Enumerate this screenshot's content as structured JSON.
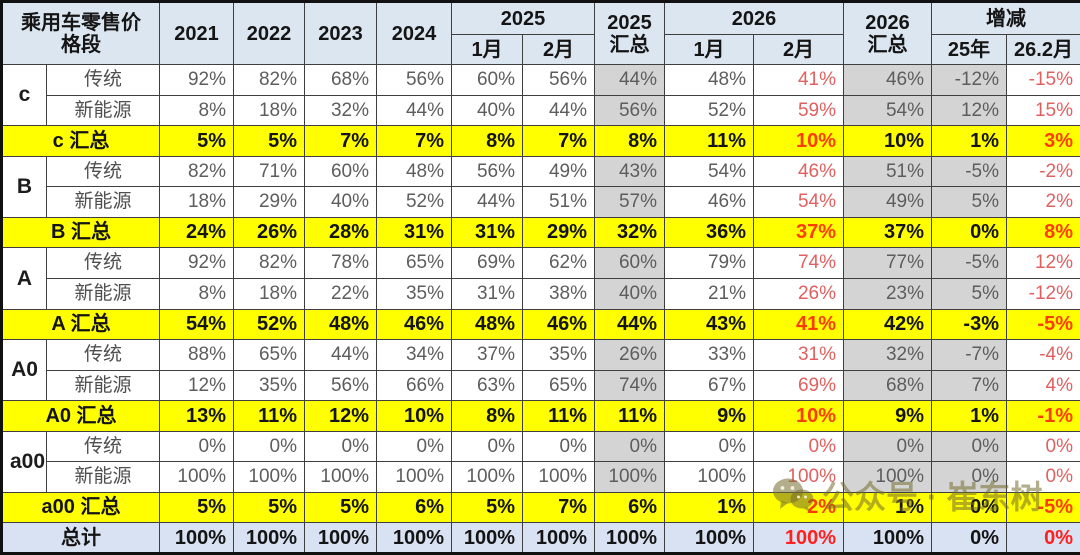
{
  "header": {
    "title": "乘用车零售价\n格段",
    "years": [
      "2021",
      "2022",
      "2023",
      "2024"
    ],
    "group_2025": "2025",
    "sum_2025": "2025\n汇总",
    "group_2026": "2026",
    "sum_2026": "2026\n汇总",
    "change_label": "增减",
    "months": [
      "1月",
      "2月"
    ],
    "change_subs": [
      "25年",
      "26.2月"
    ]
  },
  "watermark": {
    "icon": "wechat-icon",
    "text": "公众号 · 崔东树",
    "color": "#746c2e"
  },
  "style_colors": {
    "header_bg": "#dce6f1",
    "summary_bg": "#ffff00",
    "total_bg": "#d9e2f2",
    "gray_col_bg": "#d4d4d4",
    "soft_red_text": "#e06060",
    "hot_red_text": "#ff3c00",
    "bright_red_text": "#ff2020"
  },
  "chart_data": {
    "type": "table",
    "title": "乘用车零售价格段",
    "columns": [
      "2021",
      "2022",
      "2023",
      "2024",
      "2025-1月",
      "2025-2月",
      "2025汇总",
      "2026-1月",
      "2026-2月",
      "2026汇总",
      "增减25年",
      "增减26.2月"
    ],
    "rows": [
      {
        "type": "data",
        "seg": "c",
        "label": "传统",
        "values": [
          "92%",
          "82%",
          "68%",
          "56%",
          "60%",
          "56%",
          "44%",
          "48%",
          "41%",
          "46%",
          "-12%",
          "-15%"
        ]
      },
      {
        "type": "data",
        "seg": "",
        "label": "新能源",
        "values": [
          "8%",
          "18%",
          "32%",
          "44%",
          "40%",
          "44%",
          "56%",
          "52%",
          "59%",
          "54%",
          "12%",
          "15%"
        ]
      },
      {
        "type": "sum",
        "label": "c 汇总",
        "values": [
          "5%",
          "5%",
          "7%",
          "7%",
          "8%",
          "7%",
          "8%",
          "11%",
          "10%",
          "10%",
          "1%",
          "3%"
        ]
      },
      {
        "type": "data",
        "seg": "B",
        "label": "传统",
        "values": [
          "82%",
          "71%",
          "60%",
          "48%",
          "56%",
          "49%",
          "43%",
          "54%",
          "46%",
          "51%",
          "-5%",
          "-2%"
        ]
      },
      {
        "type": "data",
        "seg": "",
        "label": "新能源",
        "values": [
          "18%",
          "29%",
          "40%",
          "52%",
          "44%",
          "51%",
          "57%",
          "46%",
          "54%",
          "49%",
          "5%",
          "2%"
        ]
      },
      {
        "type": "sum",
        "label": "B 汇总",
        "values": [
          "24%",
          "26%",
          "28%",
          "31%",
          "31%",
          "29%",
          "32%",
          "36%",
          "37%",
          "37%",
          "0%",
          "8%"
        ]
      },
      {
        "type": "data",
        "seg": "A",
        "label": "传统",
        "values": [
          "92%",
          "82%",
          "78%",
          "65%",
          "69%",
          "62%",
          "60%",
          "79%",
          "74%",
          "77%",
          "-5%",
          "12%"
        ]
      },
      {
        "type": "data",
        "seg": "",
        "label": "新能源",
        "values": [
          "8%",
          "18%",
          "22%",
          "35%",
          "31%",
          "38%",
          "40%",
          "21%",
          "26%",
          "23%",
          "5%",
          "-12%"
        ]
      },
      {
        "type": "sum",
        "label": "A 汇总",
        "values": [
          "54%",
          "52%",
          "48%",
          "46%",
          "48%",
          "46%",
          "44%",
          "43%",
          "41%",
          "42%",
          "-3%",
          "-5%"
        ]
      },
      {
        "type": "data",
        "seg": "A0",
        "label": "传统",
        "values": [
          "88%",
          "65%",
          "44%",
          "34%",
          "37%",
          "35%",
          "26%",
          "33%",
          "31%",
          "32%",
          "-7%",
          "-4%"
        ]
      },
      {
        "type": "data",
        "seg": "",
        "label": "新能源",
        "values": [
          "12%",
          "35%",
          "56%",
          "66%",
          "63%",
          "65%",
          "74%",
          "67%",
          "69%",
          "68%",
          "7%",
          "4%"
        ]
      },
      {
        "type": "sum",
        "label": "A0 汇总",
        "values": [
          "13%",
          "11%",
          "12%",
          "10%",
          "8%",
          "11%",
          "11%",
          "9%",
          "10%",
          "9%",
          "1%",
          "-1%"
        ]
      },
      {
        "type": "data",
        "seg": "a00",
        "label": "传统",
        "values": [
          "0%",
          "0%",
          "0%",
          "0%",
          "0%",
          "0%",
          "0%",
          "0%",
          "0%",
          "0%",
          "0%",
          "0%"
        ]
      },
      {
        "type": "data",
        "seg": "",
        "label": "新能源",
        "values": [
          "100%",
          "100%",
          "100%",
          "100%",
          "100%",
          "100%",
          "100%",
          "100%",
          "100%",
          "100%",
          "0%",
          "0%"
        ]
      },
      {
        "type": "sum",
        "label": "a00 汇总",
        "values": [
          "5%",
          "5%",
          "5%",
          "6%",
          "5%",
          "7%",
          "6%",
          "1%",
          "2%",
          "1%",
          "0%",
          "-5%"
        ]
      },
      {
        "type": "total",
        "label": "总计",
        "values": [
          "100%",
          "100%",
          "100%",
          "100%",
          "100%",
          "100%",
          "100%",
          "100%",
          "100%",
          "100%",
          "0%",
          "0%"
        ]
      }
    ]
  }
}
